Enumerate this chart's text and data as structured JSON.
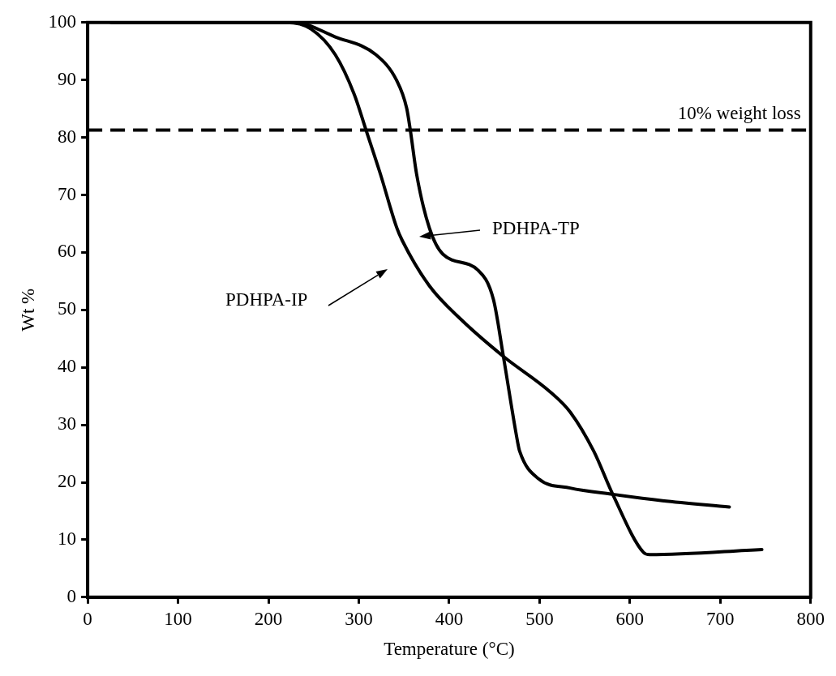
{
  "chart_data": {
    "type": "line",
    "xlabel": "Temperature (°C)",
    "ylabel": "Wt %",
    "xlim": [
      0,
      800
    ],
    "xticks": [
      0,
      100,
      200,
      300,
      400,
      500,
      600,
      700,
      800
    ],
    "ylim": [
      0,
      100
    ],
    "yticks": [
      0,
      10,
      20,
      30,
      40,
      50,
      60,
      70,
      80,
      90,
      100
    ],
    "grid": false,
    "legend": false,
    "marker": "none",
    "line_style": "solid",
    "series": [
      {
        "color": "#000000",
        "x": [
          26,
          229,
          274,
          319,
          342,
          353,
          357,
          364,
          378,
          393,
          432,
          449,
          460,
          476,
          478,
          499,
          534,
          581,
          636,
          710
        ],
        "values": [
          100,
          100,
          97.5,
          94.4,
          89.9,
          85.1,
          81.3,
          73.6,
          64.3,
          59.7,
          56.9,
          51.8,
          41.9,
          26.8,
          25.4,
          20.6,
          19.0,
          17.9,
          16.8,
          15.7
        ]
      },
      {
        "color": "#000000",
        "x": [
          26,
          220,
          247,
          274,
          295,
          308,
          324,
          342,
          348,
          378,
          414,
          460,
          512,
          534,
          560,
          581,
          615,
          622,
          746
        ],
        "values": [
          100,
          100,
          98.9,
          94.4,
          87.5,
          81.3,
          73.6,
          64.3,
          62.1,
          54.2,
          48.2,
          41.9,
          35.7,
          32.2,
          25.4,
          17.9,
          7.8,
          7.4,
          8.3
        ]
      }
    ],
    "ref_lines": [
      {
        "axis": "y",
        "value": 81.3,
        "label": "10% weight loss",
        "color": "#000000",
        "line_style": "dashed"
      }
    ],
    "annotations": [
      "PDHPA-TP",
      "PDHPA-IP"
    ]
  }
}
